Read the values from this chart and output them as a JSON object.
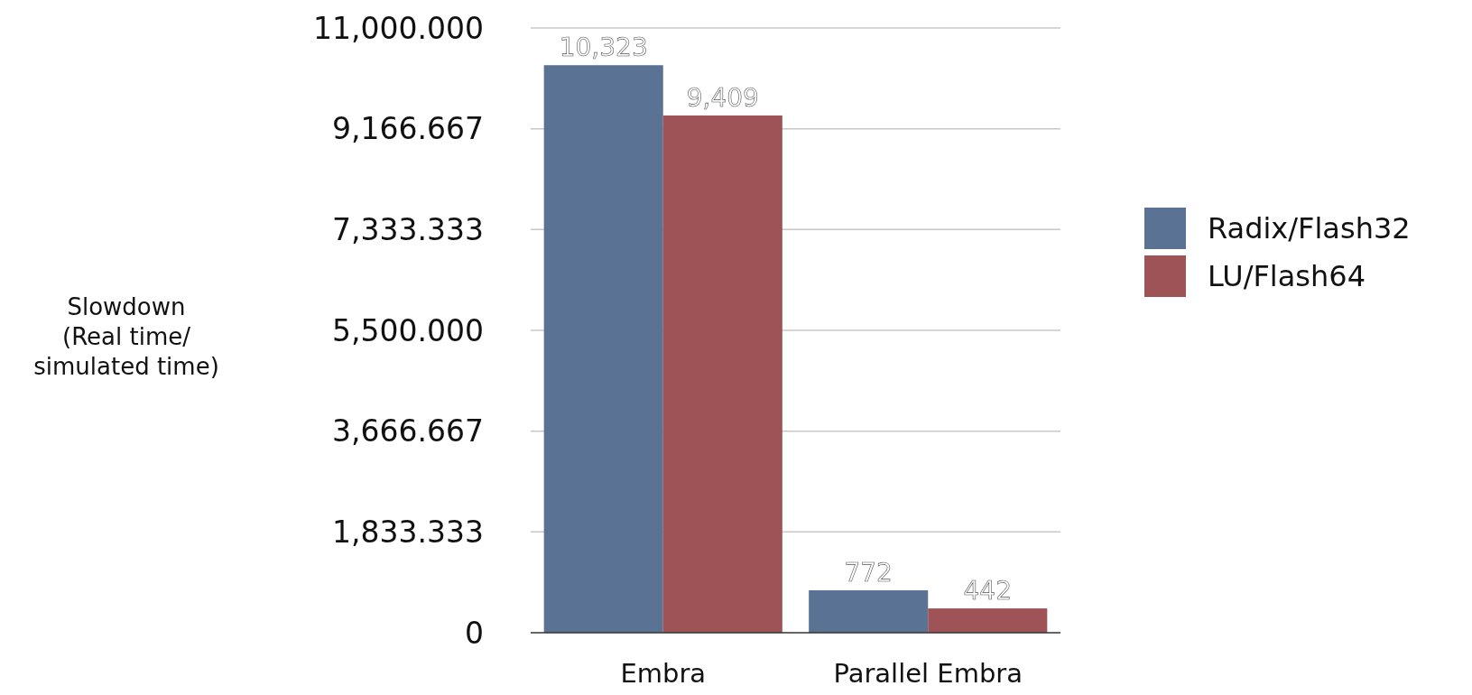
{
  "chart_data": {
    "type": "bar",
    "ylabel": "Slowdown\n(Real time/\nsimulated time)",
    "categories": [
      "Embra",
      "Parallel Embra"
    ],
    "series": [
      {
        "name": "Radix/Flash32",
        "color": "#5a7394",
        "values": [
          10323,
          772
        ],
        "value_labels": [
          "10,323",
          "772"
        ]
      },
      {
        "name": "LU/Flash64",
        "color": "#9e5356",
        "values": [
          9409,
          442
        ],
        "value_labels": [
          "9,409",
          "442"
        ]
      }
    ],
    "ylim": [
      0,
      11000
    ],
    "yticks": [
      {
        "value": 0,
        "label": "0"
      },
      {
        "value": 1833.333,
        "label": "1,833.333"
      },
      {
        "value": 3666.667,
        "label": "3,666.667"
      },
      {
        "value": 5500,
        "label": "5,500.000"
      },
      {
        "value": 7333.333,
        "label": "7,333.333"
      },
      {
        "value": 9166.667,
        "label": "9,166.667"
      },
      {
        "value": 11000,
        "label": "11,000.000"
      }
    ],
    "grid": "y",
    "legend": "right"
  }
}
